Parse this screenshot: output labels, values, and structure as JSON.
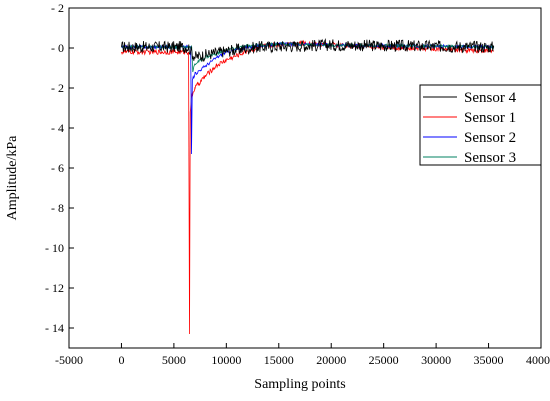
{
  "chart_data": {
    "type": "line",
    "xlabel": "Sampling points",
    "ylabel": "Amplitude/kPa",
    "xlim": [
      -5000,
      40000
    ],
    "ylim": [
      -15,
      2
    ],
    "x_ticks": [
      -5000,
      0,
      5000,
      10000,
      15000,
      20000,
      25000,
      30000,
      35000,
      40000
    ],
    "x_tick_labels": [
      "-5000",
      "0",
      "5000",
      "10000",
      "15000",
      "20000",
      "25000",
      "30000",
      "35000",
      "40000"
    ],
    "y_ticks": [
      2,
      0,
      -2,
      -4,
      -6,
      -8,
      -10,
      -12,
      -14
    ],
    "y_tick_labels": [
      "- 2",
      "- 0",
      "- 2",
      "- 4",
      "- 6",
      "- 8",
      "- 10",
      "- 12",
      "- 14"
    ],
    "grid": false,
    "legend_position": "right",
    "series": [
      {
        "name": "Sensor 4",
        "color": "#000000",
        "points": [
          [
            0,
            0.05
          ],
          [
            6400,
            0.05
          ],
          [
            6600,
            -0.15
          ],
          [
            7000,
            -0.45
          ],
          [
            8000,
            -0.35
          ],
          [
            10000,
            -0.15
          ],
          [
            13000,
            0.05
          ],
          [
            20000,
            0.15
          ],
          [
            35500,
            0.05
          ]
        ],
        "noise": 0.3
      },
      {
        "name": "Sensor 1",
        "color": "#ff0000",
        "points": [
          [
            0,
            -0.2
          ],
          [
            6400,
            -0.2
          ],
          [
            6490,
            -14.3
          ],
          [
            6560,
            -3.2
          ],
          [
            6700,
            -2.4
          ],
          [
            7000,
            -2.0
          ],
          [
            8000,
            -1.4
          ],
          [
            9000,
            -0.9
          ],
          [
            10000,
            -0.6
          ],
          [
            12000,
            -0.15
          ],
          [
            14000,
            0.15
          ],
          [
            17000,
            0.25
          ],
          [
            22000,
            0.1
          ],
          [
            35500,
            -0.15
          ]
        ],
        "noise": 0.12
      },
      {
        "name": "Sensor 2",
        "color": "#0000ff",
        "points": [
          [
            0,
            0.05
          ],
          [
            6600,
            0.05
          ],
          [
            6680,
            -5.3
          ],
          [
            6760,
            -1.6
          ],
          [
            7000,
            -1.3
          ],
          [
            8000,
            -0.9
          ],
          [
            9000,
            -0.5
          ],
          [
            10000,
            -0.2
          ],
          [
            12000,
            0.05
          ],
          [
            15000,
            0.2
          ],
          [
            20000,
            0.15
          ],
          [
            35500,
            0.05
          ]
        ],
        "noise": 0.08
      },
      {
        "name": "Sensor 3",
        "color": "#008060",
        "points": [
          [
            0,
            0.05
          ],
          [
            6700,
            0.05
          ],
          [
            6800,
            -1.2
          ],
          [
            7000,
            -0.8
          ],
          [
            8000,
            -0.45
          ],
          [
            9000,
            -0.3
          ],
          [
            10000,
            -0.1
          ],
          [
            12000,
            0.1
          ],
          [
            15000,
            0.2
          ],
          [
            20000,
            0.15
          ],
          [
            35500,
            0.05
          ]
        ],
        "noise": 0.08
      }
    ]
  }
}
